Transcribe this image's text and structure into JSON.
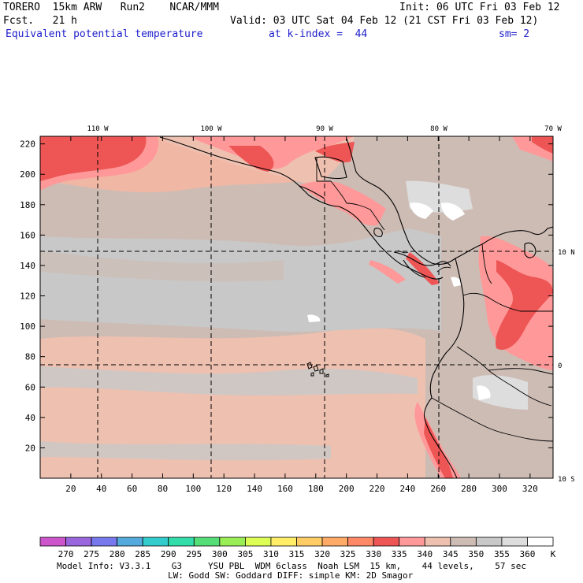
{
  "header": {
    "model_title": "TORERO  15km ARW   Run2    NCAR/MMM",
    "init": "Init: 06 UTC Fri 03 Feb 12",
    "fcst": "Fcst.   21 h",
    "valid": "Valid: 03 UTC Sat 04 Feb 12 (21 CST Fri 03 Feb 12)",
    "field": "Equivalent potential temperature",
    "level": "at k-index =  44",
    "smoothing": "sm= 2"
  },
  "axes": {
    "x_ticks": [
      "20",
      "40",
      "60",
      "80",
      "100",
      "120",
      "140",
      "160",
      "180",
      "200",
      "220",
      "240",
      "260",
      "280",
      "300",
      "320"
    ],
    "y_ticks": [
      "220",
      "200",
      "180",
      "160",
      "140",
      "120",
      "100",
      "80",
      "60",
      "40",
      "20"
    ],
    "lon_labels": [
      "110 W",
      "100 W",
      "90 W",
      "80 W",
      "70 W"
    ],
    "lat_labels": [
      "10 N",
      "0",
      "10 S"
    ]
  },
  "colorbar": {
    "levels": [
      "270",
      "275",
      "280",
      "285",
      "290",
      "295",
      "300",
      "305",
      "310",
      "315",
      "320",
      "325",
      "330",
      "335",
      "340",
      "345",
      "350",
      "355",
      "360"
    ],
    "unit": "K",
    "colors": [
      "#cc55cc",
      "#9966dd",
      "#7777ee",
      "#55aadd",
      "#33cccc",
      "#33ddaa",
      "#55dd77",
      "#99ee55",
      "#ddff55",
      "#ffee66",
      "#ffcc66",
      "#ffaa66",
      "#ff8866",
      "#ee5555",
      "#ff9999",
      "#eec0b0",
      "#cdbcb4",
      "#c8c8c8",
      "#dddddd",
      "#ffffff"
    ]
  },
  "footer": {
    "line1": "Model Info: V3.3.1    G3     YSU PBL  WDM 6class  Noah LSM  15 km,    44 levels,    57 sec",
    "line2": "LW: Godd SW: Goddard DIFF: simple KM: 2D Smagor"
  }
}
